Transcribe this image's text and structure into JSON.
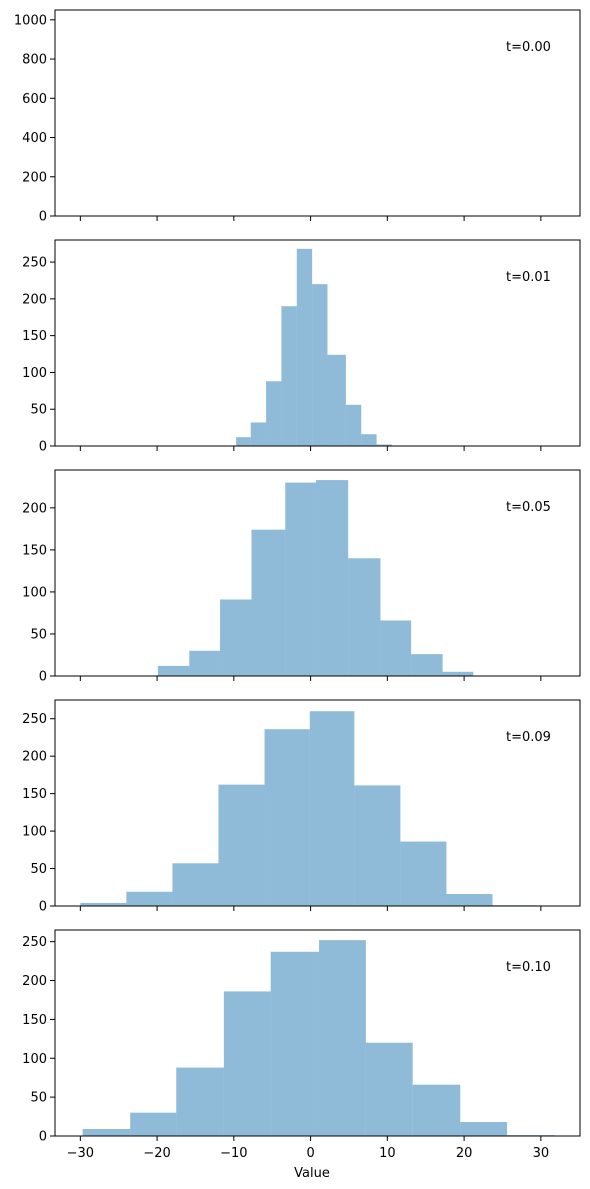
{
  "figure": {
    "xlabel": "Value",
    "bar_color": "#1f77b4",
    "bar_opacity": 0.5
  },
  "chart_data": [
    {
      "type": "bar",
      "annotation": "t=0.00",
      "xlim": [
        -33.3,
        35.1
      ],
      "ylim": [
        0,
        1050
      ],
      "xticks": [],
      "yticks": [
        0,
        200,
        400,
        600,
        800,
        1000
      ],
      "bin_edges": [],
      "values": []
    },
    {
      "type": "bar",
      "annotation": "t=0.01",
      "xlim": [
        -33.3,
        35.1
      ],
      "ylim": [
        0,
        280
      ],
      "xticks": [],
      "yticks": [
        0,
        50,
        100,
        150,
        200,
        250
      ],
      "bin_edges": [
        -9.7,
        -7.8,
        -5.8,
        -3.8,
        -1.8,
        0.2,
        2.2,
        4.6,
        6.6,
        8.6,
        10.6
      ],
      "values": [
        12,
        32,
        88,
        190,
        268,
        220,
        124,
        56,
        16,
        2
      ]
    },
    {
      "type": "bar",
      "annotation": "t=0.05",
      "xlim": [
        -33.3,
        35.1
      ],
      "ylim": [
        0,
        245
      ],
      "xticks": [],
      "yticks": [
        0,
        50,
        100,
        150,
        200
      ],
      "bin_edges": [
        -19.9,
        -15.8,
        -11.8,
        -7.7,
        -3.3,
        0.7,
        4.9,
        9.1,
        13.1,
        17.2,
        21.2
      ],
      "values": [
        12,
        30,
        91,
        174,
        230,
        233,
        140,
        66,
        26,
        5
      ]
    },
    {
      "type": "bar",
      "annotation": "t=0.09",
      "xlim": [
        -33.3,
        35.1
      ],
      "ylim": [
        0,
        275
      ],
      "xticks": [],
      "yticks": [
        0,
        50,
        100,
        150,
        200,
        250
      ],
      "bin_edges": [
        -30.0,
        -24.0,
        -18.0,
        -12.0,
        -6.0,
        -0.1,
        5.7,
        11.7,
        17.7,
        23.7,
        29.7
      ],
      "values": [
        4,
        19,
        57,
        162,
        236,
        260,
        161,
        86,
        16,
        1
      ]
    },
    {
      "type": "bar",
      "annotation": "t=0.10",
      "xlim": [
        -33.3,
        35.1
      ],
      "ylim": [
        0,
        265
      ],
      "xticks": [
        -30,
        -20,
        -10,
        0,
        10,
        20,
        30
      ],
      "yticks": [
        0,
        50,
        100,
        150,
        200,
        250
      ],
      "bin_edges": [
        -29.7,
        -23.5,
        -17.5,
        -11.3,
        -5.2,
        1.1,
        7.2,
        13.3,
        19.5,
        25.6,
        31.8
      ],
      "values": [
        9,
        30,
        88,
        186,
        237,
        252,
        120,
        66,
        18,
        1
      ]
    }
  ]
}
